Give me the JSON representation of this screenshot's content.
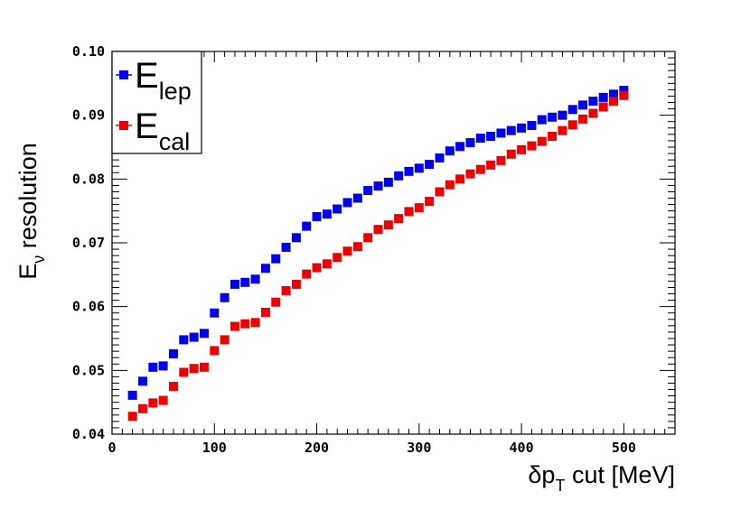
{
  "chart_data": {
    "type": "scatter",
    "title": "",
    "xlabel": {
      "main": "δp",
      "sub": "T",
      "rest": " cut [MeV]"
    },
    "ylabel": {
      "main": "E",
      "sub": "ν",
      "rest": " resolution"
    },
    "xlim": [
      0,
      550
    ],
    "ylim": [
      0.04,
      0.1
    ],
    "xticks": [
      0,
      100,
      200,
      300,
      400,
      500
    ],
    "xtick_labels": [
      "0",
      "100",
      "200",
      "300",
      "400",
      "500"
    ],
    "yticks": [
      0.04,
      0.05,
      0.06,
      0.07,
      0.08,
      0.09,
      0.1
    ],
    "ytick_labels": [
      "0.04",
      "0.05",
      "0.06",
      "0.07",
      "0.08",
      "0.09",
      "0.10"
    ],
    "grid": false,
    "legend_position": "top-left",
    "x": [
      20,
      30,
      40,
      50,
      60,
      70,
      80,
      90,
      100,
      110,
      120,
      130,
      140,
      150,
      160,
      170,
      180,
      190,
      200,
      210,
      220,
      230,
      240,
      250,
      260,
      270,
      280,
      290,
      300,
      310,
      320,
      330,
      340,
      350,
      360,
      370,
      380,
      390,
      400,
      410,
      420,
      430,
      440,
      450,
      460,
      470,
      480,
      490,
      500
    ],
    "series": [
      {
        "name": "E_lep",
        "legend_main": "E",
        "legend_sub": "lep",
        "color": "#0000ee",
        "values": [
          0.0461,
          0.0483,
          0.0505,
          0.0507,
          0.0526,
          0.0548,
          0.0552,
          0.0558,
          0.059,
          0.0614,
          0.0635,
          0.0638,
          0.0643,
          0.066,
          0.0675,
          0.0693,
          0.0708,
          0.0726,
          0.0741,
          0.0745,
          0.0753,
          0.0763,
          0.077,
          0.0782,
          0.0789,
          0.0795,
          0.0805,
          0.0812,
          0.0817,
          0.0823,
          0.0833,
          0.0844,
          0.0851,
          0.0857,
          0.0864,
          0.0867,
          0.0872,
          0.0876,
          0.088,
          0.0884,
          0.0893,
          0.0897,
          0.09,
          0.0909,
          0.0916,
          0.0922,
          0.0928,
          0.0933,
          0.0939
        ]
      },
      {
        "name": "E_cal",
        "legend_main": "E",
        "legend_sub": "cal",
        "color": "#ee0000",
        "values": [
          0.0428,
          0.044,
          0.0449,
          0.0453,
          0.0475,
          0.0497,
          0.0503,
          0.0505,
          0.0531,
          0.0548,
          0.0569,
          0.0573,
          0.0575,
          0.0591,
          0.0607,
          0.0625,
          0.0635,
          0.0651,
          0.0661,
          0.0667,
          0.0677,
          0.0687,
          0.0694,
          0.0708,
          0.0721,
          0.0728,
          0.0738,
          0.0749,
          0.0755,
          0.0765,
          0.078,
          0.0791,
          0.08,
          0.0808,
          0.0815,
          0.0822,
          0.0829,
          0.0839,
          0.0846,
          0.0852,
          0.0859,
          0.0867,
          0.0876,
          0.0885,
          0.0894,
          0.0903,
          0.0913,
          0.0922,
          0.0931
        ]
      }
    ]
  }
}
